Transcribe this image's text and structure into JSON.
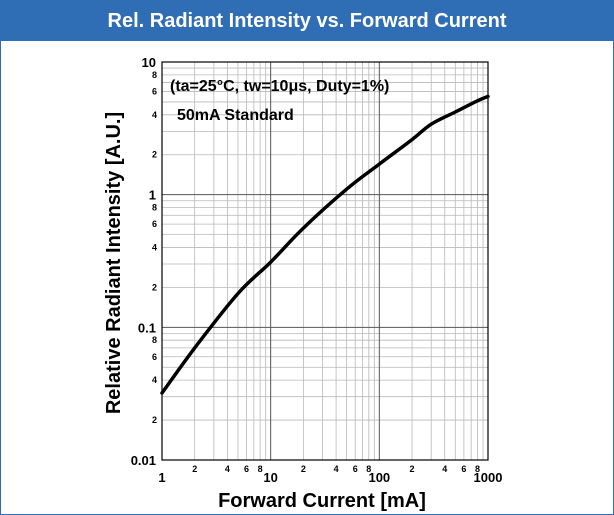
{
  "header": {
    "title": "Rel. Radiant Intensity vs. Forward Current"
  },
  "chart_data": {
    "type": "line",
    "x_scale": "log",
    "y_scale": "log",
    "xlim": [
      1,
      1000
    ],
    "ylim": [
      0.01,
      10
    ],
    "xlabel": "Forward Current [mA]",
    "ylabel": "Relative Radiant Intensity [A.U.]",
    "annotations": [
      "(ta=25°C, tw=10μs, Duty=1%)",
      "50mA Standard"
    ],
    "grid": true,
    "x_major_ticks": [
      {
        "value": 1,
        "label": "1"
      },
      {
        "value": 10,
        "label": "10"
      },
      {
        "value": 100,
        "label": "100"
      },
      {
        "value": 1000,
        "label": "1000"
      }
    ],
    "x_minor_ticks": [
      {
        "value": 2,
        "label": "2"
      },
      {
        "value": 4,
        "label": "4"
      },
      {
        "value": 6,
        "label": "6"
      },
      {
        "value": 8,
        "label": "8"
      },
      {
        "value": 20,
        "label": "2"
      },
      {
        "value": 40,
        "label": "4"
      },
      {
        "value": 60,
        "label": "6"
      },
      {
        "value": 80,
        "label": "8"
      },
      {
        "value": 200,
        "label": "2"
      },
      {
        "value": 400,
        "label": "4"
      },
      {
        "value": 600,
        "label": "6"
      },
      {
        "value": 800,
        "label": "8"
      }
    ],
    "y_major_ticks": [
      {
        "value": 0.01,
        "label": "0.01"
      },
      {
        "value": 0.1,
        "label": "0.1"
      },
      {
        "value": 1,
        "label": "1"
      },
      {
        "value": 10,
        "label": "10"
      }
    ],
    "y_minor_ticks": [
      {
        "value": 0.02,
        "label": "2"
      },
      {
        "value": 0.04,
        "label": "4"
      },
      {
        "value": 0.06,
        "label": "6"
      },
      {
        "value": 0.08,
        "label": "8"
      },
      {
        "value": 0.2,
        "label": "2"
      },
      {
        "value": 0.4,
        "label": "4"
      },
      {
        "value": 0.6,
        "label": "6"
      },
      {
        "value": 0.8,
        "label": "8"
      },
      {
        "value": 2,
        "label": "2"
      },
      {
        "value": 4,
        "label": "4"
      },
      {
        "value": 6,
        "label": "6"
      },
      {
        "value": 8,
        "label": "8"
      }
    ],
    "series": [
      {
        "color": "#000000",
        "x": [
          1,
          2,
          5,
          10,
          20,
          50,
          100,
          200,
          300,
          500,
          800,
          1000
        ],
        "y": [
          0.032,
          0.07,
          0.18,
          0.31,
          0.56,
          1.1,
          1.7,
          2.6,
          3.4,
          4.2,
          5.1,
          5.5
        ]
      }
    ]
  }
}
